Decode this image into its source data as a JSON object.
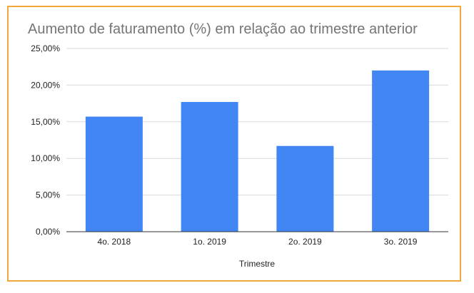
{
  "chart_data": {
    "type": "bar",
    "title": "Aumento de faturamento (%) em relação ao trimestre anterior",
    "xlabel": "Trimestre",
    "ylabel": "",
    "categories": [
      "4o. 2018",
      "1o. 2019",
      "2o. 2019",
      "3o. 2019"
    ],
    "values": [
      15.7,
      17.7,
      11.7,
      22.0
    ],
    "ylim": [
      0,
      25
    ],
    "yticks": [
      "0,00%",
      "5,00%",
      "10,00%",
      "15,00%",
      "20,00%",
      "25,00%"
    ],
    "grid": true,
    "legend": "none",
    "bar_color": "#4285f4",
    "frame_color": "#f2a93b"
  }
}
